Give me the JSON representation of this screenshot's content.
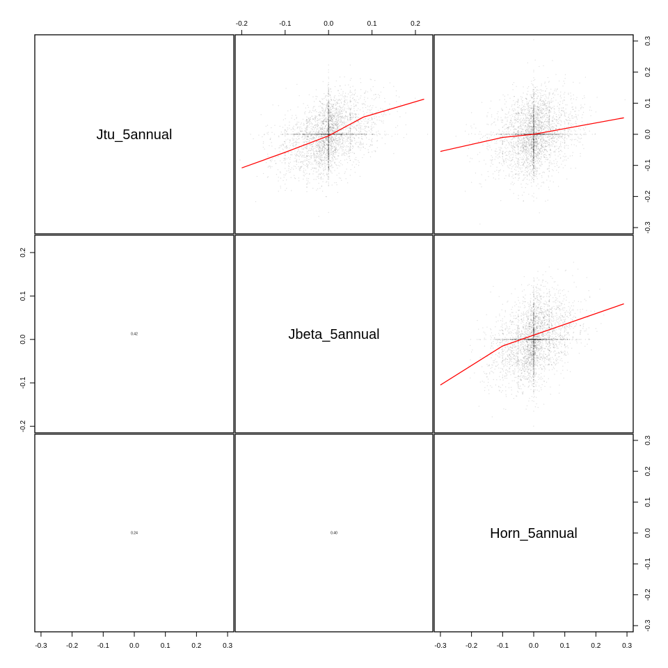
{
  "chart_data": {
    "type": "scatter",
    "layout": "pairs-matrix",
    "variables": [
      "Jtu_5annual",
      "Jbeta_5annual",
      "Horn_5annual"
    ],
    "axis_ticks": {
      "Jtu_5annual": [
        "-0.3",
        "-0.2",
        "-0.1",
        "0.0",
        "0.1",
        "0.2",
        "0.3"
      ],
      "Jbeta_5annual": [
        "-0.2",
        "-0.1",
        "0.0",
        "0.1",
        "0.2"
      ],
      "Horn_5annual": [
        "-0.3",
        "-0.2",
        "-0.1",
        "0.0",
        "0.1",
        "0.2",
        "0.3"
      ]
    },
    "axis_ranges": {
      "Jtu_5annual": [
        -0.32,
        0.32
      ],
      "Jbeta_5annual": [
        -0.215,
        0.24
      ],
      "Horn_5annual": [
        -0.32,
        0.32
      ]
    },
    "correlations": [
      {
        "row": "Jbeta_5annual",
        "col": "Jtu_5annual",
        "label": "0.42"
      },
      {
        "row": "Horn_5annual",
        "col": "Jtu_5annual",
        "label": "0.24"
      },
      {
        "row": "Horn_5annual",
        "col": "Jbeta_5annual",
        "label": "0.40"
      }
    ],
    "scatter_panels": [
      {
        "row": "Jtu_5annual",
        "col": "Jbeta_5annual",
        "x_sd": 0.06,
        "y_sd": 0.07,
        "r": 0.42,
        "n": 3500,
        "smooth": [
          [
            -0.2,
            -0.108
          ],
          [
            -0.1,
            -0.058
          ],
          [
            0.0,
            -0.005
          ],
          [
            0.08,
            0.055
          ],
          [
            0.22,
            0.113
          ]
        ]
      },
      {
        "row": "Jtu_5annual",
        "col": "Horn_5annual",
        "x_sd": 0.07,
        "y_sd": 0.07,
        "r": 0.24,
        "n": 3500,
        "smooth": [
          [
            -0.3,
            -0.055
          ],
          [
            -0.1,
            -0.01
          ],
          [
            0.0,
            0.0
          ],
          [
            0.29,
            0.053
          ]
        ]
      },
      {
        "row": "Jbeta_5annual",
        "col": "Horn_5annual",
        "x_sd": 0.07,
        "y_sd": 0.055,
        "r": 0.4,
        "n": 3500,
        "smooth": [
          [
            -0.3,
            -0.105
          ],
          [
            -0.1,
            -0.015
          ],
          [
            0.0,
            0.01
          ],
          [
            0.29,
            0.082
          ]
        ]
      }
    ],
    "point_color": "#000000",
    "point_opacity": 0.13,
    "smooth_color": "#ff0000",
    "grid": false,
    "legend": "none"
  }
}
